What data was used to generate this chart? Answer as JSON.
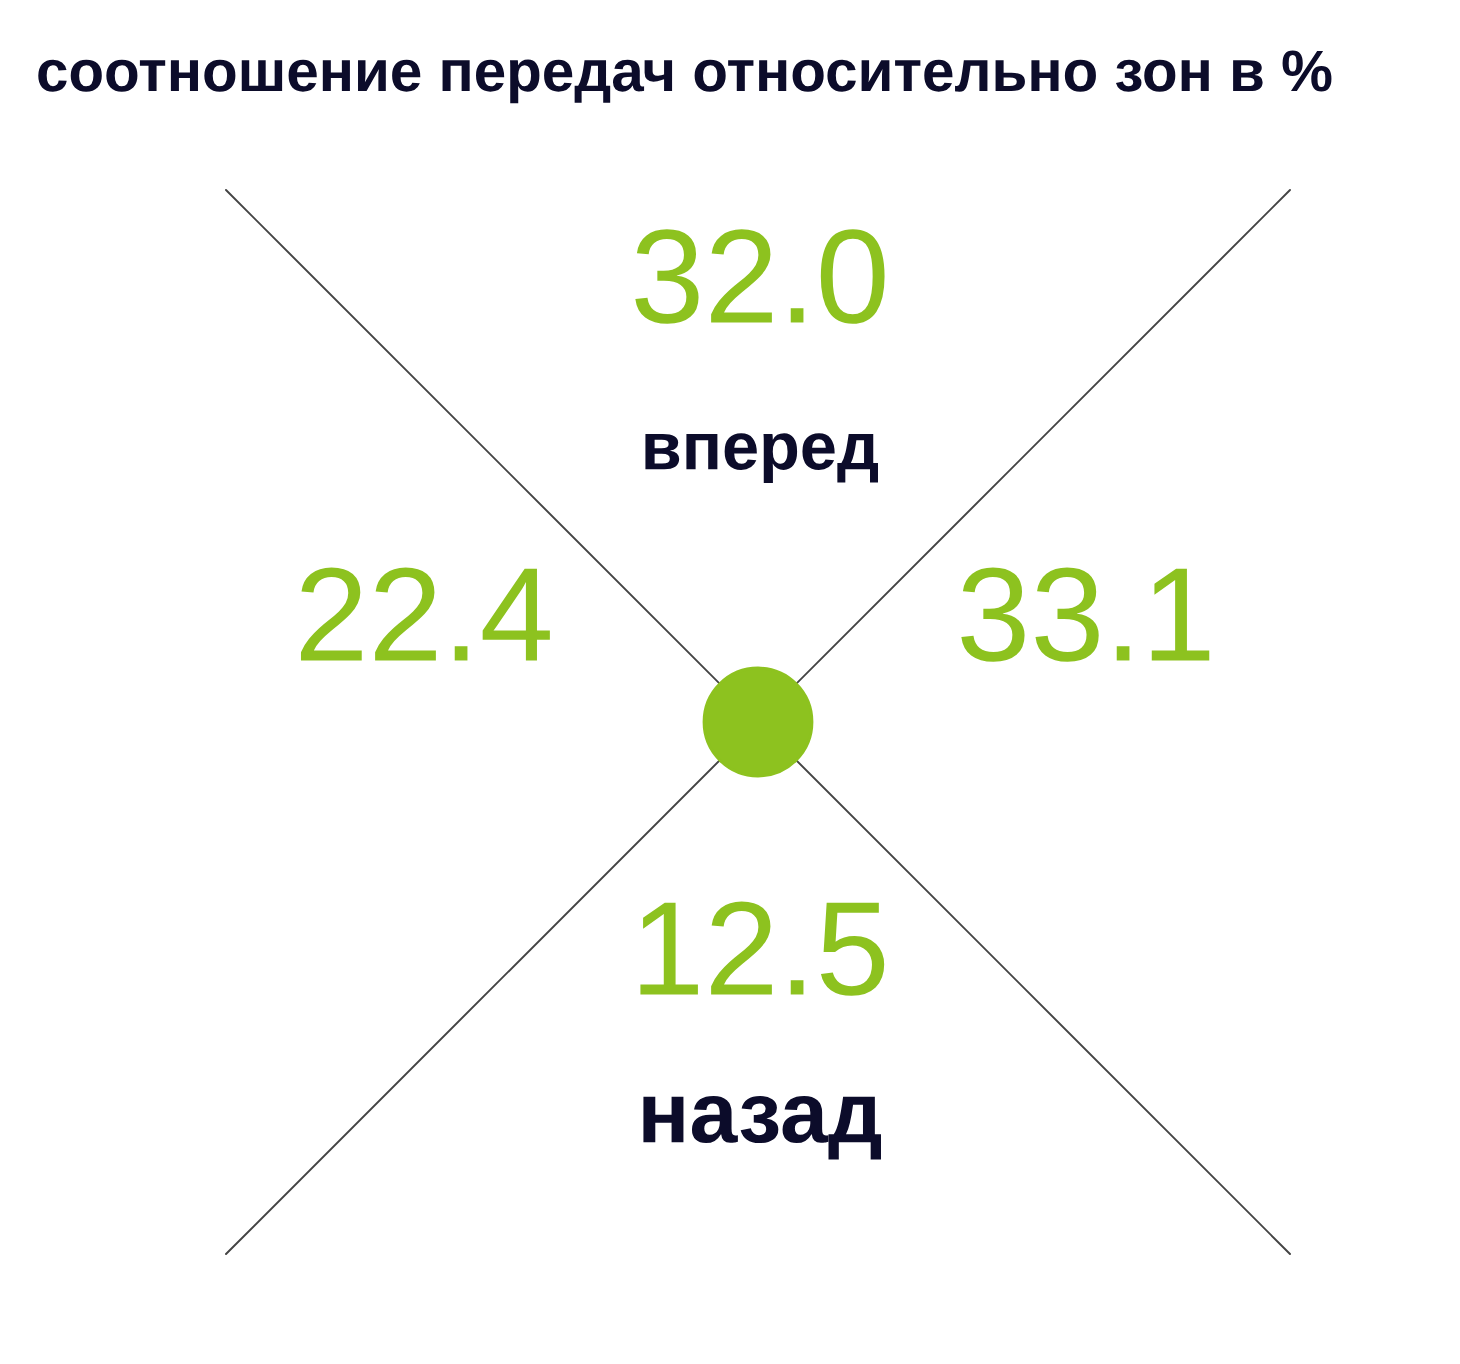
{
  "chart_data": {
    "type": "other",
    "title": "соотношение передач относительно зон в %",
    "categories": [
      "вперед",
      null,
      null,
      "назад"
    ],
    "values": [
      32.0,
      22.4,
      33.1,
      12.5
    ],
    "value_labels": [
      "32.0",
      "22.4",
      "33.1",
      "12.5"
    ],
    "data_labels": true,
    "colors": [
      "#8dc21f",
      "#8dc21f",
      "#8dc21f",
      "#8dc21f"
    ]
  }
}
